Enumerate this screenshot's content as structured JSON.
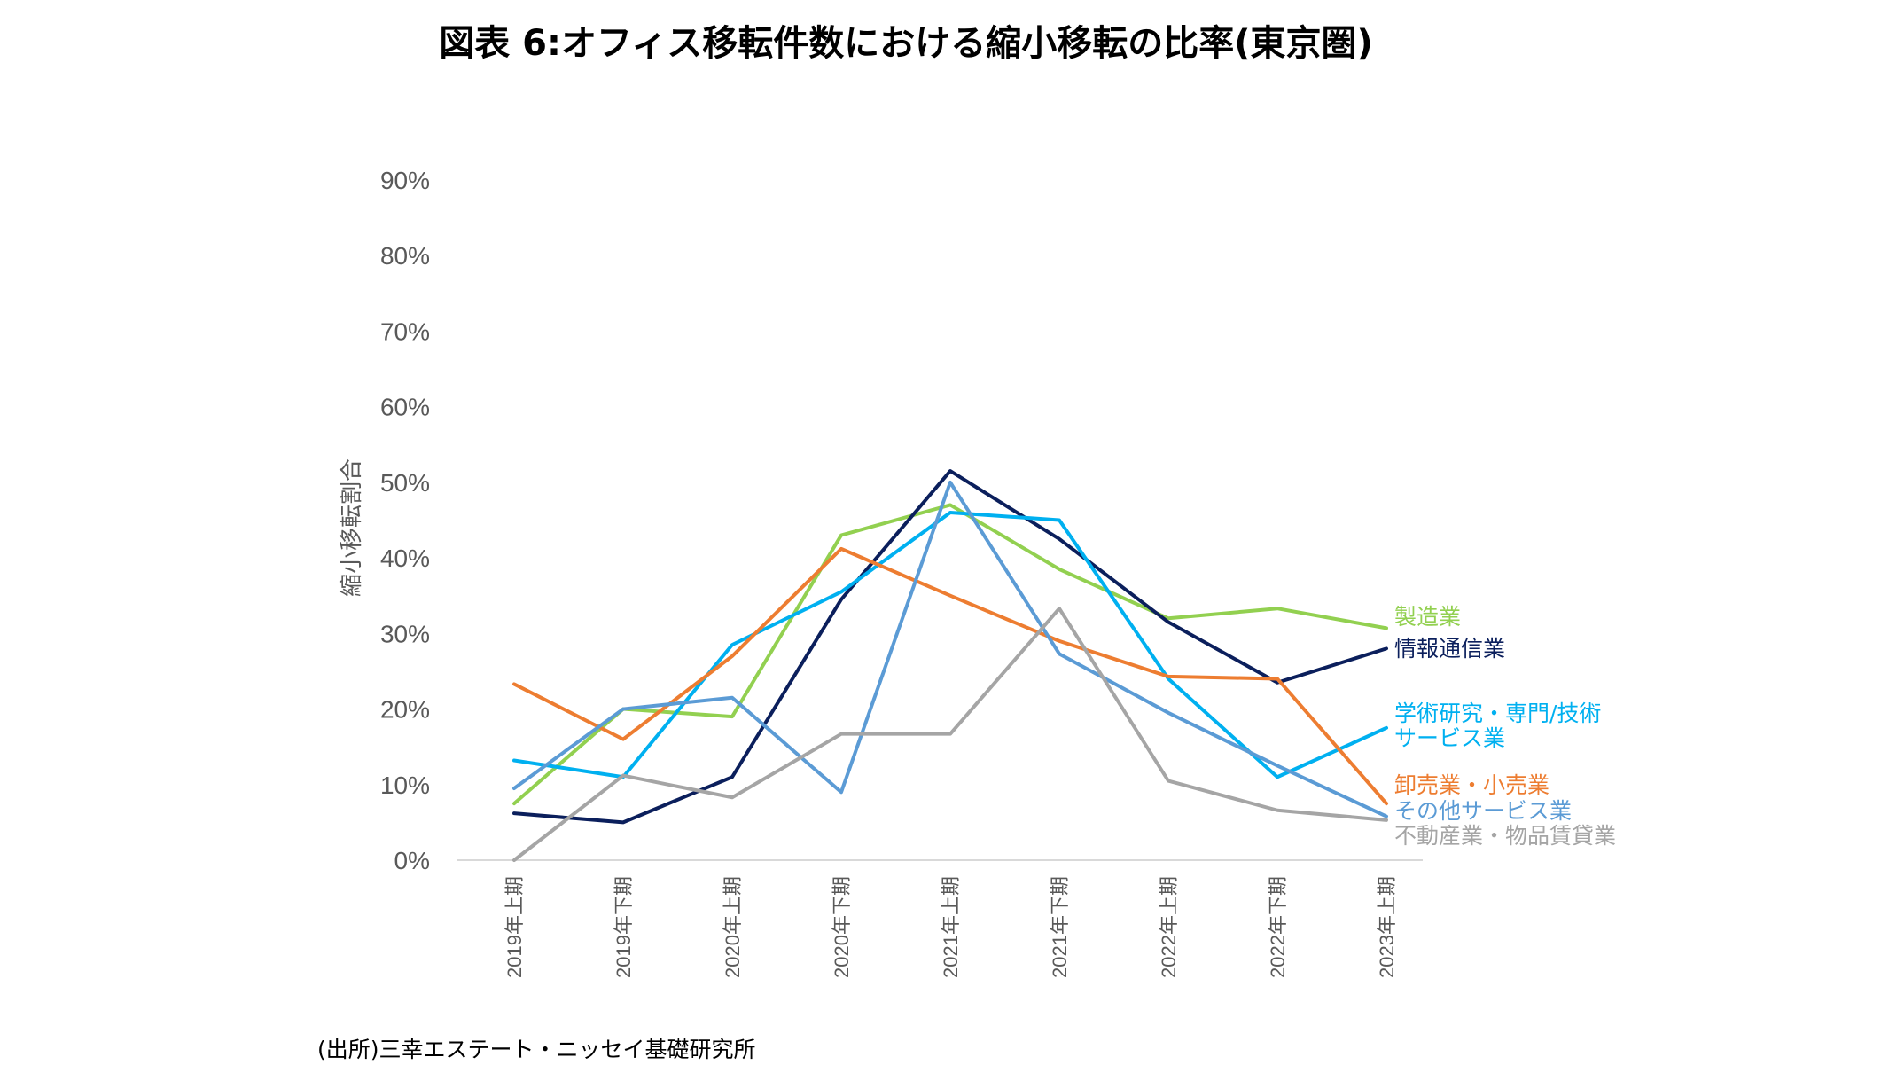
{
  "chart_data": {
    "type": "line",
    "title": "図表 6:オフィス移転件数における縮小移転の比率(東京圏)",
    "ylabel": "縮小移転割合",
    "xlabel": "",
    "ylim": [
      0,
      90
    ],
    "yticks": [
      "0%",
      "10%",
      "20%",
      "30%",
      "40%",
      "50%",
      "60%",
      "70%",
      "80%",
      "90%"
    ],
    "ytick_values": [
      0,
      10,
      20,
      30,
      40,
      50,
      60,
      70,
      80,
      90
    ],
    "categories": [
      "2019年上期",
      "2019年下期",
      "2020年上期",
      "2020年下期",
      "2021年上期",
      "2021年下期",
      "2022年上期",
      "2022年下期",
      "2023年上期"
    ],
    "grid": false,
    "legend": "inline labels at line ends (right)",
    "series": [
      {
        "name": "製造業",
        "label_lines": [
          "製造業"
        ],
        "color": "#92D050",
        "values": [
          7.5,
          20.0,
          19.0,
          43.0,
          47.0,
          38.5,
          32.0,
          33.3,
          30.7
        ]
      },
      {
        "name": "情報通信業",
        "label_lines": [
          "情報通信業"
        ],
        "color": "#0B1F5C",
        "values": [
          6.2,
          5.0,
          11.0,
          34.5,
          51.5,
          42.5,
          31.5,
          23.5,
          28.0
        ]
      },
      {
        "name": "学術研究・専門/技術サービス業",
        "label_lines": [
          "学術研究・専門/技術",
          "サービス業"
        ],
        "color": "#00B0F0",
        "values": [
          13.2,
          11.0,
          28.5,
          35.5,
          46.0,
          45.0,
          24.0,
          11.0,
          17.5
        ]
      },
      {
        "name": "卸売業・小売業",
        "label_lines": [
          "卸売業・小売業"
        ],
        "color": "#ED7D31",
        "values": [
          23.3,
          16.0,
          27.0,
          41.2,
          35.0,
          29.0,
          24.3,
          24.0,
          7.5
        ]
      },
      {
        "name": "その他サービス業",
        "label_lines": [
          "その他サービス業"
        ],
        "color": "#5B9BD5",
        "values": [
          9.5,
          20.0,
          21.5,
          9.0,
          50.0,
          27.3,
          19.5,
          12.5,
          5.8
        ]
      },
      {
        "name": "不動産業・物品賃貸業",
        "label_lines": [
          "不動産業・物品賃貸業"
        ],
        "color": "#A5A5A5",
        "values": [
          0.0,
          11.2,
          8.3,
          16.7,
          16.7,
          33.3,
          10.5,
          6.6,
          5.3
        ]
      }
    ]
  },
  "source": "(出所)三幸エステート・ニッセイ基礎研究所"
}
